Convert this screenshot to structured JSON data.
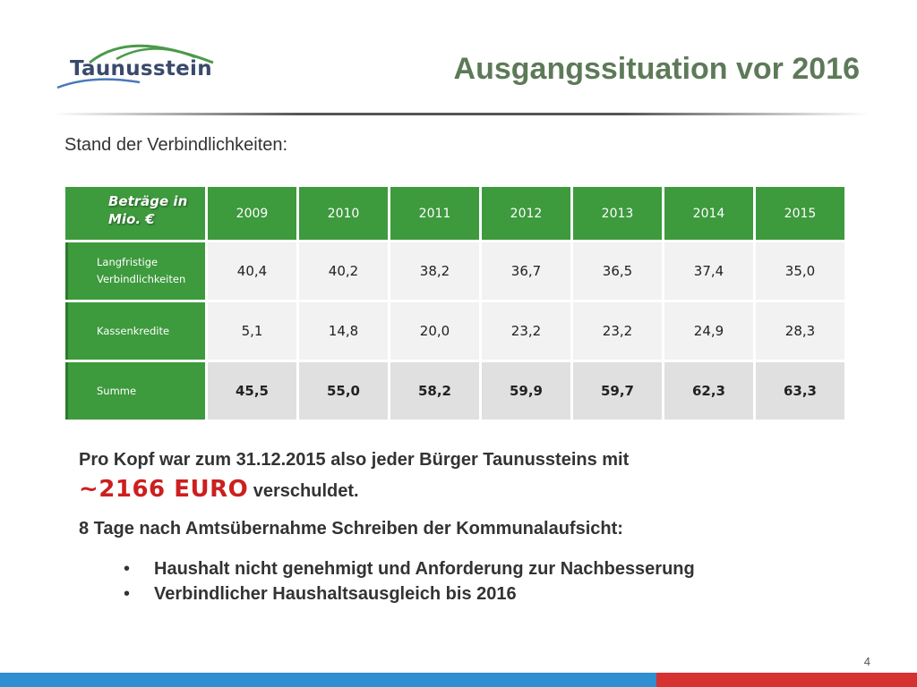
{
  "brand": {
    "name": "Taunusstein"
  },
  "slide": {
    "title": "Ausgangssituation vor 2016",
    "subtitle": "Stand der Verbindlichkeiten:",
    "page_number": "4"
  },
  "table": {
    "header_label_line1": "Beträge in",
    "header_label_line2": "Mio. €",
    "years": [
      "2009",
      "2010",
      "2011",
      "2012",
      "2013",
      "2014",
      "2015"
    ],
    "rows": [
      {
        "label_line1": "Langfristige",
        "label_line2": "Verbindlichkeiten",
        "values": [
          "40,4",
          "40,2",
          "38,2",
          "36,7",
          "36,5",
          "37,4",
          "35,0"
        ]
      },
      {
        "label_line1": "Kassenkredite",
        "label_line2": "",
        "values": [
          "5,1",
          "14,8",
          "20,0",
          "23,2",
          "23,2",
          "24,9",
          "28,3"
        ]
      },
      {
        "label_line1": "Summe",
        "label_line2": "",
        "values": [
          "45,5",
          "55,0",
          "58,2",
          "59,9",
          "59,7",
          "62,3",
          "63,3"
        ]
      }
    ]
  },
  "body": {
    "line1": "Pro Kopf war zum 31.12.2015 also jeder Bürger Taunussteins mit",
    "highlight": "~2166 EURO",
    "line2_rest": " verschuldet.",
    "line3": "8 Tage nach Amtsübernahme Schreiben der Kommunalaufsicht:",
    "bullet_symbol": "•",
    "bullets": [
      "Haushalt nicht genehmigt und Anforderung zur Nachbesserung",
      "Verbindlicher Haushaltsausgleich bis 2016"
    ]
  },
  "colors": {
    "title": "#5d7a58",
    "table_green": "#3d9a3d",
    "highlight_red": "#cc1f1f",
    "footer_blue": "#2f8fd0",
    "footer_red": "#d63232"
  }
}
